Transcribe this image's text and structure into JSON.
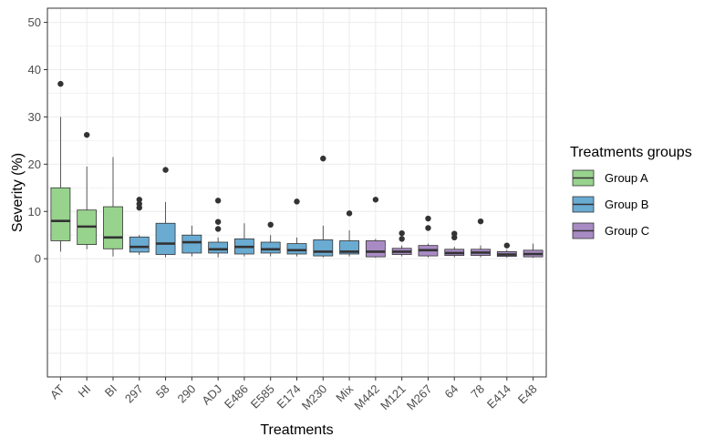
{
  "chart_data": {
    "type": "boxplot",
    "xlabel": "Treatments",
    "ylabel": "Severity (%)",
    "ylim": [
      -25,
      53
    ],
    "yticks": [
      0,
      10,
      20,
      30,
      40,
      50
    ],
    "grid": true,
    "legend": {
      "title": "Treatments groups",
      "placement": "right",
      "entries": [
        {
          "label": "Group A",
          "color": "#98d38e"
        },
        {
          "label": "Group B",
          "color": "#6aabd2"
        },
        {
          "label": "Group C",
          "color": "#a98bc4"
        }
      ]
    },
    "colors": {
      "Group A": "#98d38e",
      "Group B": "#6aabd2",
      "Group C": "#a98bc4",
      "outline": "#333333",
      "grid": "#ebebeb",
      "panel_border": "#333333"
    },
    "categories": [
      "AT",
      "HI",
      "BI",
      "297",
      "58",
      "290",
      "ADJ",
      "E486",
      "E585",
      "E174",
      "M230",
      "Mix",
      "M442",
      "M121",
      "M267",
      "64",
      "78",
      "E414",
      "E48"
    ],
    "series": [
      {
        "category": "AT",
        "group": "Group A",
        "min": 1.5,
        "q1": 3.8,
        "median": 8.0,
        "q3": 15.0,
        "max": 30.0,
        "outliers": [
          37.0
        ]
      },
      {
        "category": "HI",
        "group": "Group A",
        "min": 2.0,
        "q1": 3.0,
        "median": 6.8,
        "q3": 10.3,
        "max": 19.5,
        "outliers": [
          26.2
        ]
      },
      {
        "category": "BI",
        "group": "Group A",
        "min": 0.5,
        "q1": 2.1,
        "median": 4.5,
        "q3": 11.0,
        "max": 21.5,
        "outliers": []
      },
      {
        "category": "297",
        "group": "Group B",
        "min": 0.8,
        "q1": 1.4,
        "median": 2.5,
        "q3": 4.6,
        "max": 5.0,
        "outliers": [
          10.8,
          11.6,
          12.5
        ]
      },
      {
        "category": "58",
        "group": "Group B",
        "min": 0.3,
        "q1": 0.9,
        "median": 3.2,
        "q3": 7.5,
        "max": 12.0,
        "outliers": [
          18.8
        ]
      },
      {
        "category": "290",
        "group": "Group B",
        "min": 0.5,
        "q1": 1.2,
        "median": 3.5,
        "q3": 5.0,
        "max": 7.0,
        "outliers": []
      },
      {
        "category": "ADJ",
        "group": "Group B",
        "min": 0.3,
        "q1": 1.2,
        "median": 2.0,
        "q3": 3.5,
        "max": 4.5,
        "outliers": [
          6.3,
          7.8,
          12.3
        ]
      },
      {
        "category": "E486",
        "group": "Group B",
        "min": 0.5,
        "q1": 1.0,
        "median": 2.5,
        "q3": 4.2,
        "max": 7.5,
        "outliers": []
      },
      {
        "category": "E585",
        "group": "Group B",
        "min": 0.5,
        "q1": 1.2,
        "median": 2.0,
        "q3": 3.5,
        "max": 5.0,
        "outliers": [
          7.2
        ]
      },
      {
        "category": "E174",
        "group": "Group B",
        "min": 0.5,
        "q1": 1.0,
        "median": 1.8,
        "q3": 3.2,
        "max": 4.5,
        "outliers": [
          12.1
        ]
      },
      {
        "category": "M230",
        "group": "Group B",
        "min": 0.3,
        "q1": 0.6,
        "median": 1.5,
        "q3": 4.0,
        "max": 7.0,
        "outliers": [
          21.2
        ]
      },
      {
        "category": "Mix",
        "group": "Group B",
        "min": 0.5,
        "q1": 1.0,
        "median": 1.5,
        "q3": 3.8,
        "max": 6.0,
        "outliers": [
          9.6
        ]
      },
      {
        "category": "M442",
        "group": "Group C",
        "min": 0.2,
        "q1": 0.4,
        "median": 1.5,
        "q3": 3.8,
        "max": 4.2,
        "outliers": [
          12.5
        ]
      },
      {
        "category": "M121",
        "group": "Group C",
        "min": 0.5,
        "q1": 0.9,
        "median": 1.5,
        "q3": 2.2,
        "max": 2.8,
        "outliers": [
          4.2,
          5.4
        ]
      },
      {
        "category": "M267",
        "group": "Group C",
        "min": 0.3,
        "q1": 0.6,
        "median": 1.8,
        "q3": 2.8,
        "max": 3.2,
        "outliers": [
          6.5,
          8.5
        ]
      },
      {
        "category": "64",
        "group": "Group C",
        "min": 0.3,
        "q1": 0.7,
        "median": 1.2,
        "q3": 2.0,
        "max": 2.5,
        "outliers": [
          4.5,
          5.3
        ]
      },
      {
        "category": "78",
        "group": "Group C",
        "min": 0.3,
        "q1": 0.7,
        "median": 1.3,
        "q3": 2.0,
        "max": 2.8,
        "outliers": [
          7.9
        ]
      },
      {
        "category": "E414",
        "group": "Group C",
        "min": 0.2,
        "q1": 0.5,
        "median": 0.9,
        "q3": 1.5,
        "max": 1.9,
        "outliers": [
          2.8
        ]
      },
      {
        "category": "E48",
        "group": "Group C",
        "min": 0.2,
        "q1": 0.4,
        "median": 1.0,
        "q3": 1.8,
        "max": 3.2,
        "outliers": []
      }
    ]
  }
}
